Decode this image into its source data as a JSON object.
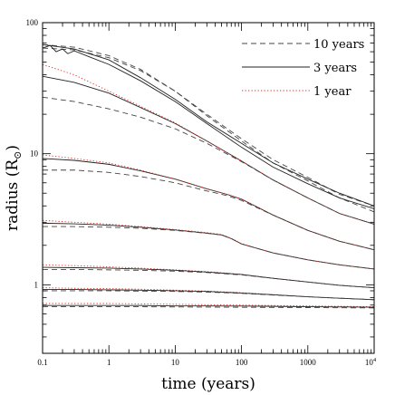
{
  "chart_data": {
    "type": "line",
    "xlabel": "time (years)",
    "ylabel_main": "radius (R",
    "ylabel_sub": "⊙",
    "ylabel_close": ")",
    "x_scale": "log",
    "y_scale": "log",
    "xlim": [
      0.1,
      10000
    ],
    "ylim": [
      0.3,
      100
    ],
    "grid": false,
    "legend_placement": "top-right",
    "x_ticks": [
      {
        "value": 0.1,
        "label": "0.1"
      },
      {
        "value": 1,
        "label": "1"
      },
      {
        "value": 10,
        "label": "10"
      },
      {
        "value": 100,
        "label": "100"
      },
      {
        "value": 1000,
        "label": "1000"
      }
    ],
    "x_tick_last": {
      "value": 10000,
      "base": "10",
      "exp": "4"
    },
    "y_ticks": [
      {
        "value": 1,
        "label": "1"
      },
      {
        "value": 10,
        "label": "10"
      },
      {
        "value": 100,
        "label": "100"
      }
    ],
    "styles": {
      "10 years": {
        "color": "#444444",
        "dash": "6,4",
        "width": 1.0
      },
      "3 years": {
        "color": "#222222",
        "dash": "",
        "width": 0.9
      },
      "1 year": {
        "color": "#e0302a",
        "dash": "1.3,2.2",
        "width": 1.1
      }
    },
    "legend": [
      {
        "name": "10 years",
        "style": "10 years"
      },
      {
        "name": "3 years",
        "style": "3 years"
      },
      {
        "name": "1 year",
        "style": "1 year"
      }
    ],
    "series": [
      {
        "style": "10 years",
        "x": [
          0.1,
          0.3,
          1,
          3,
          10,
          30,
          100,
          300,
          1000,
          3000,
          10000
        ],
        "y": [
          64,
          62,
          54,
          43,
          30,
          20,
          13,
          9.0,
          6.6,
          4.9,
          4.0
        ]
      },
      {
        "style": "10 years",
        "x": [
          0.1,
          0.3,
          1,
          3,
          10,
          30,
          100,
          300,
          1000,
          3000,
          10000
        ],
        "y": [
          68,
          65,
          56,
          44,
          30,
          19.5,
          12.5,
          8.5,
          6.2,
          4.6,
          3.6
        ]
      },
      {
        "style": "3 years",
        "x": [
          0.1,
          0.13,
          0.16,
          0.2,
          0.24,
          0.3,
          0.5,
          1,
          3,
          10,
          30,
          100,
          300,
          1000,
          3000,
          10000
        ],
        "y": [
          64,
          67,
          60,
          63,
          58,
          61,
          55,
          48,
          36,
          25,
          17,
          11.2,
          7.9,
          5.9,
          4.6,
          3.8
        ]
      },
      {
        "style": "3 years",
        "x": [
          0.1,
          0.3,
          1,
          3,
          10,
          30,
          100,
          300,
          1000,
          3000,
          10000
        ],
        "y": [
          68,
          63,
          52,
          38,
          26,
          17.5,
          12,
          8.5,
          6.4,
          5.0,
          4.0
        ]
      },
      {
        "style": "3 years",
        "x": [
          0.1,
          0.3,
          1,
          3,
          10,
          30,
          100,
          300,
          1000,
          3000,
          10000
        ],
        "y": [
          39,
          35,
          29,
          22.5,
          17,
          12.5,
          8.8,
          6.3,
          4.6,
          3.5,
          2.9
        ]
      },
      {
        "style": "1 year",
        "x": [
          0.1,
          0.3,
          1,
          3,
          10,
          30,
          100,
          300,
          1000,
          3000,
          10000
        ],
        "y": [
          48,
          40,
          30,
          23,
          17.2,
          12.5,
          8.8,
          6.3,
          4.6,
          3.5,
          2.9
        ]
      },
      {
        "style": "10 years",
        "x": [
          0.1,
          0.3,
          1,
          3,
          10,
          30,
          100,
          300,
          1000,
          3000,
          10000
        ],
        "y": [
          27,
          25,
          22,
          19,
          15.5,
          12,
          8.7,
          6.3,
          4.6,
          3.5,
          2.9
        ]
      },
      {
        "style": "3 years",
        "x": [
          0.1,
          0.3,
          1,
          3,
          10,
          30,
          60,
          100,
          300,
          1000,
          3000,
          10000
        ],
        "y": [
          9.2,
          8.9,
          8.3,
          7.4,
          6.4,
          5.4,
          4.9,
          4.5,
          3.4,
          2.6,
          2.15,
          1.85
        ]
      },
      {
        "style": "1 year",
        "x": [
          0.1,
          0.3,
          1,
          3,
          10,
          30,
          60,
          100,
          300,
          1000,
          3000,
          10000
        ],
        "y": [
          9.8,
          9.2,
          8.5,
          7.5,
          6.4,
          5.4,
          4.9,
          4.5,
          3.4,
          2.6,
          2.15,
          1.85
        ]
      },
      {
        "style": "10 years",
        "x": [
          0.1,
          0.3,
          1,
          3,
          10,
          30,
          60,
          100,
          300,
          1000,
          3000,
          10000
        ],
        "y": [
          7.5,
          7.5,
          7.2,
          6.7,
          6.0,
          5.2,
          4.8,
          4.4,
          3.4,
          2.6,
          2.15,
          1.85
        ]
      },
      {
        "style": "3 years",
        "x": [
          0.1,
          0.3,
          1,
          3,
          10,
          30,
          50,
          70,
          100,
          300,
          1000,
          3000,
          10000
        ],
        "y": [
          2.95,
          2.92,
          2.85,
          2.75,
          2.62,
          2.48,
          2.4,
          2.25,
          2.05,
          1.75,
          1.55,
          1.42,
          1.32
        ]
      },
      {
        "style": "1 year",
        "x": [
          0.1,
          0.3,
          1,
          3,
          10,
          30,
          50,
          70,
          100,
          300,
          1000,
          3000,
          10000
        ],
        "y": [
          3.1,
          3.0,
          2.9,
          2.78,
          2.64,
          2.5,
          2.42,
          2.26,
          2.06,
          1.75,
          1.55,
          1.42,
          1.32
        ]
      },
      {
        "style": "10 years",
        "x": [
          0.1,
          0.3,
          1,
          3,
          10,
          30,
          50,
          70,
          100,
          300,
          1000,
          3000,
          10000
        ],
        "y": [
          2.78,
          2.78,
          2.75,
          2.7,
          2.6,
          2.47,
          2.4,
          2.25,
          2.05,
          1.75,
          1.55,
          1.42,
          1.32
        ]
      },
      {
        "style": "1 year",
        "x": [
          0.1,
          0.3,
          1,
          3,
          10,
          30,
          100,
          300,
          1000,
          3000,
          10000
        ],
        "y": [
          1.42,
          1.4,
          1.37,
          1.34,
          1.3,
          1.26,
          1.2,
          1.12,
          1.05,
          0.99,
          0.95
        ]
      },
      {
        "style": "3 years",
        "x": [
          0.1,
          0.3,
          1,
          3,
          10,
          30,
          100,
          300,
          1000,
          3000,
          10000
        ],
        "y": [
          1.36,
          1.35,
          1.34,
          1.32,
          1.29,
          1.25,
          1.2,
          1.12,
          1.05,
          0.99,
          0.95
        ]
      },
      {
        "style": "10 years",
        "x": [
          0.1,
          0.3,
          1,
          3,
          10,
          30,
          100,
          300,
          1000,
          3000,
          10000
        ],
        "y": [
          1.31,
          1.31,
          1.3,
          1.29,
          1.27,
          1.24,
          1.19,
          1.12,
          1.05,
          0.99,
          0.95
        ]
      },
      {
        "style": "1 year",
        "x": [
          0.1,
          0.3,
          1,
          3,
          10,
          30,
          100,
          300,
          1000,
          3000,
          10000
        ],
        "y": [
          0.95,
          0.94,
          0.935,
          0.925,
          0.91,
          0.895,
          0.87,
          0.84,
          0.81,
          0.79,
          0.77
        ]
      },
      {
        "style": "3 years",
        "x": [
          0.1,
          0.3,
          1,
          3,
          10,
          30,
          100,
          300,
          1000,
          3000,
          10000
        ],
        "y": [
          0.92,
          0.92,
          0.915,
          0.91,
          0.9,
          0.89,
          0.865,
          0.84,
          0.81,
          0.79,
          0.77
        ]
      },
      {
        "style": "10 years",
        "x": [
          0.1,
          0.3,
          1,
          3,
          10,
          30,
          100,
          300,
          1000,
          3000,
          10000
        ],
        "y": [
          0.9,
          0.9,
          0.9,
          0.895,
          0.89,
          0.88,
          0.86,
          0.835,
          0.81,
          0.79,
          0.77
        ]
      },
      {
        "style": "1 year",
        "x": [
          0.1,
          0.3,
          1,
          3,
          10,
          30,
          100,
          300,
          1000,
          3000,
          10000
        ],
        "y": [
          0.72,
          0.72,
          0.72,
          0.715,
          0.71,
          0.705,
          0.7,
          0.695,
          0.69,
          0.685,
          0.68
        ]
      },
      {
        "style": "3 years",
        "x": [
          0.1,
          0.3,
          1,
          3,
          10,
          30,
          100,
          300,
          1000,
          3000,
          10000
        ],
        "y": [
          0.695,
          0.695,
          0.695,
          0.695,
          0.69,
          0.69,
          0.688,
          0.685,
          0.68,
          0.678,
          0.675
        ]
      },
      {
        "style": "10 years",
        "x": [
          0.1,
          0.3,
          1,
          3,
          10,
          30,
          100,
          300,
          1000,
          3000,
          10000
        ],
        "y": [
          0.68,
          0.68,
          0.68,
          0.68,
          0.678,
          0.676,
          0.674,
          0.672,
          0.67,
          0.668,
          0.666
        ]
      }
    ]
  }
}
